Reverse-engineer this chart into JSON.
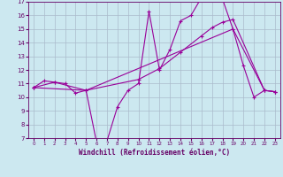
{
  "bg_color": "#cce8f0",
  "line_color": "#990099",
  "grid_color": "#aabbcc",
  "xlabel": "Windchill (Refroidissement éolien,°C)",
  "xlabel_color": "#660066",
  "tick_color": "#660066",
  "xlim": [
    -0.5,
    23.5
  ],
  "ylim": [
    7,
    17
  ],
  "yticks": [
    7,
    8,
    9,
    10,
    11,
    12,
    13,
    14,
    15,
    16,
    17
  ],
  "xticks": [
    0,
    1,
    2,
    3,
    4,
    5,
    6,
    7,
    8,
    9,
    10,
    11,
    12,
    13,
    14,
    15,
    16,
    17,
    18,
    19,
    20,
    21,
    22,
    23
  ],
  "series1_x": [
    0,
    1,
    2,
    3,
    4,
    5,
    6,
    7,
    8,
    9,
    10,
    11,
    12,
    13,
    14,
    15,
    16,
    17,
    18,
    19,
    20,
    21,
    22,
    23
  ],
  "series1_y": [
    10.7,
    11.2,
    11.1,
    11.0,
    10.3,
    10.5,
    6.7,
    6.8,
    9.3,
    10.5,
    11.0,
    16.3,
    12.0,
    13.5,
    15.6,
    16.0,
    17.3,
    17.2,
    17.2,
    15.0,
    12.3,
    10.0,
    10.5,
    10.4
  ],
  "series2_x": [
    0,
    2,
    5,
    10,
    12,
    14,
    16,
    17,
    18,
    19,
    22,
    23
  ],
  "series2_y": [
    10.7,
    11.1,
    10.5,
    11.3,
    12.1,
    13.3,
    14.5,
    15.1,
    15.5,
    15.7,
    10.5,
    10.4
  ],
  "series3_x": [
    0,
    5,
    19,
    22,
    23
  ],
  "series3_y": [
    10.7,
    10.5,
    15.0,
    10.5,
    10.4
  ]
}
